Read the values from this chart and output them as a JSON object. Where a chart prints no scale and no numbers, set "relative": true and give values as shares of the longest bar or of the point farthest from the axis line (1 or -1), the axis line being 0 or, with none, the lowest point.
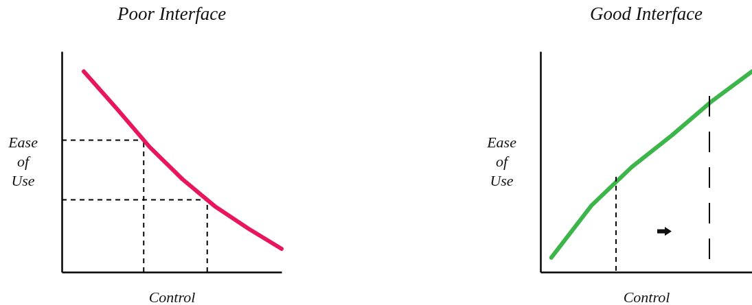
{
  "chart_data": [
    {
      "type": "line",
      "title": "Poor Interface",
      "xlabel": "Control",
      "ylabel": "Ease of Use",
      "relative": true,
      "categories": [
        null,
        null,
        null,
        null,
        null,
        null,
        null
      ],
      "series": [
        {
          "color": "#e8175d",
          "values": [
            1,
            0.815,
            0.623,
            0.462,
            0.325,
            0.216,
            0.116
          ]
        }
      ],
      "ref_lines": [
        {
          "axis": "y",
          "value": 0.658,
          "line_style": "dashed"
        },
        {
          "axis": "y",
          "value": 0.36,
          "line_style": "dashed"
        }
      ]
    },
    {
      "type": "line",
      "title": "Good Interface",
      "xlabel": "Control",
      "ylabel": "Ease of Use",
      "relative": true,
      "categories": [
        null,
        null,
        null,
        null,
        null,
        null
      ],
      "series": [
        {
          "color": "#3cb54a",
          "values": [
            0.072,
            0.332,
            0.523,
            0.681,
            0.852,
            1
          ]
        }
      ]
    }
  ]
}
